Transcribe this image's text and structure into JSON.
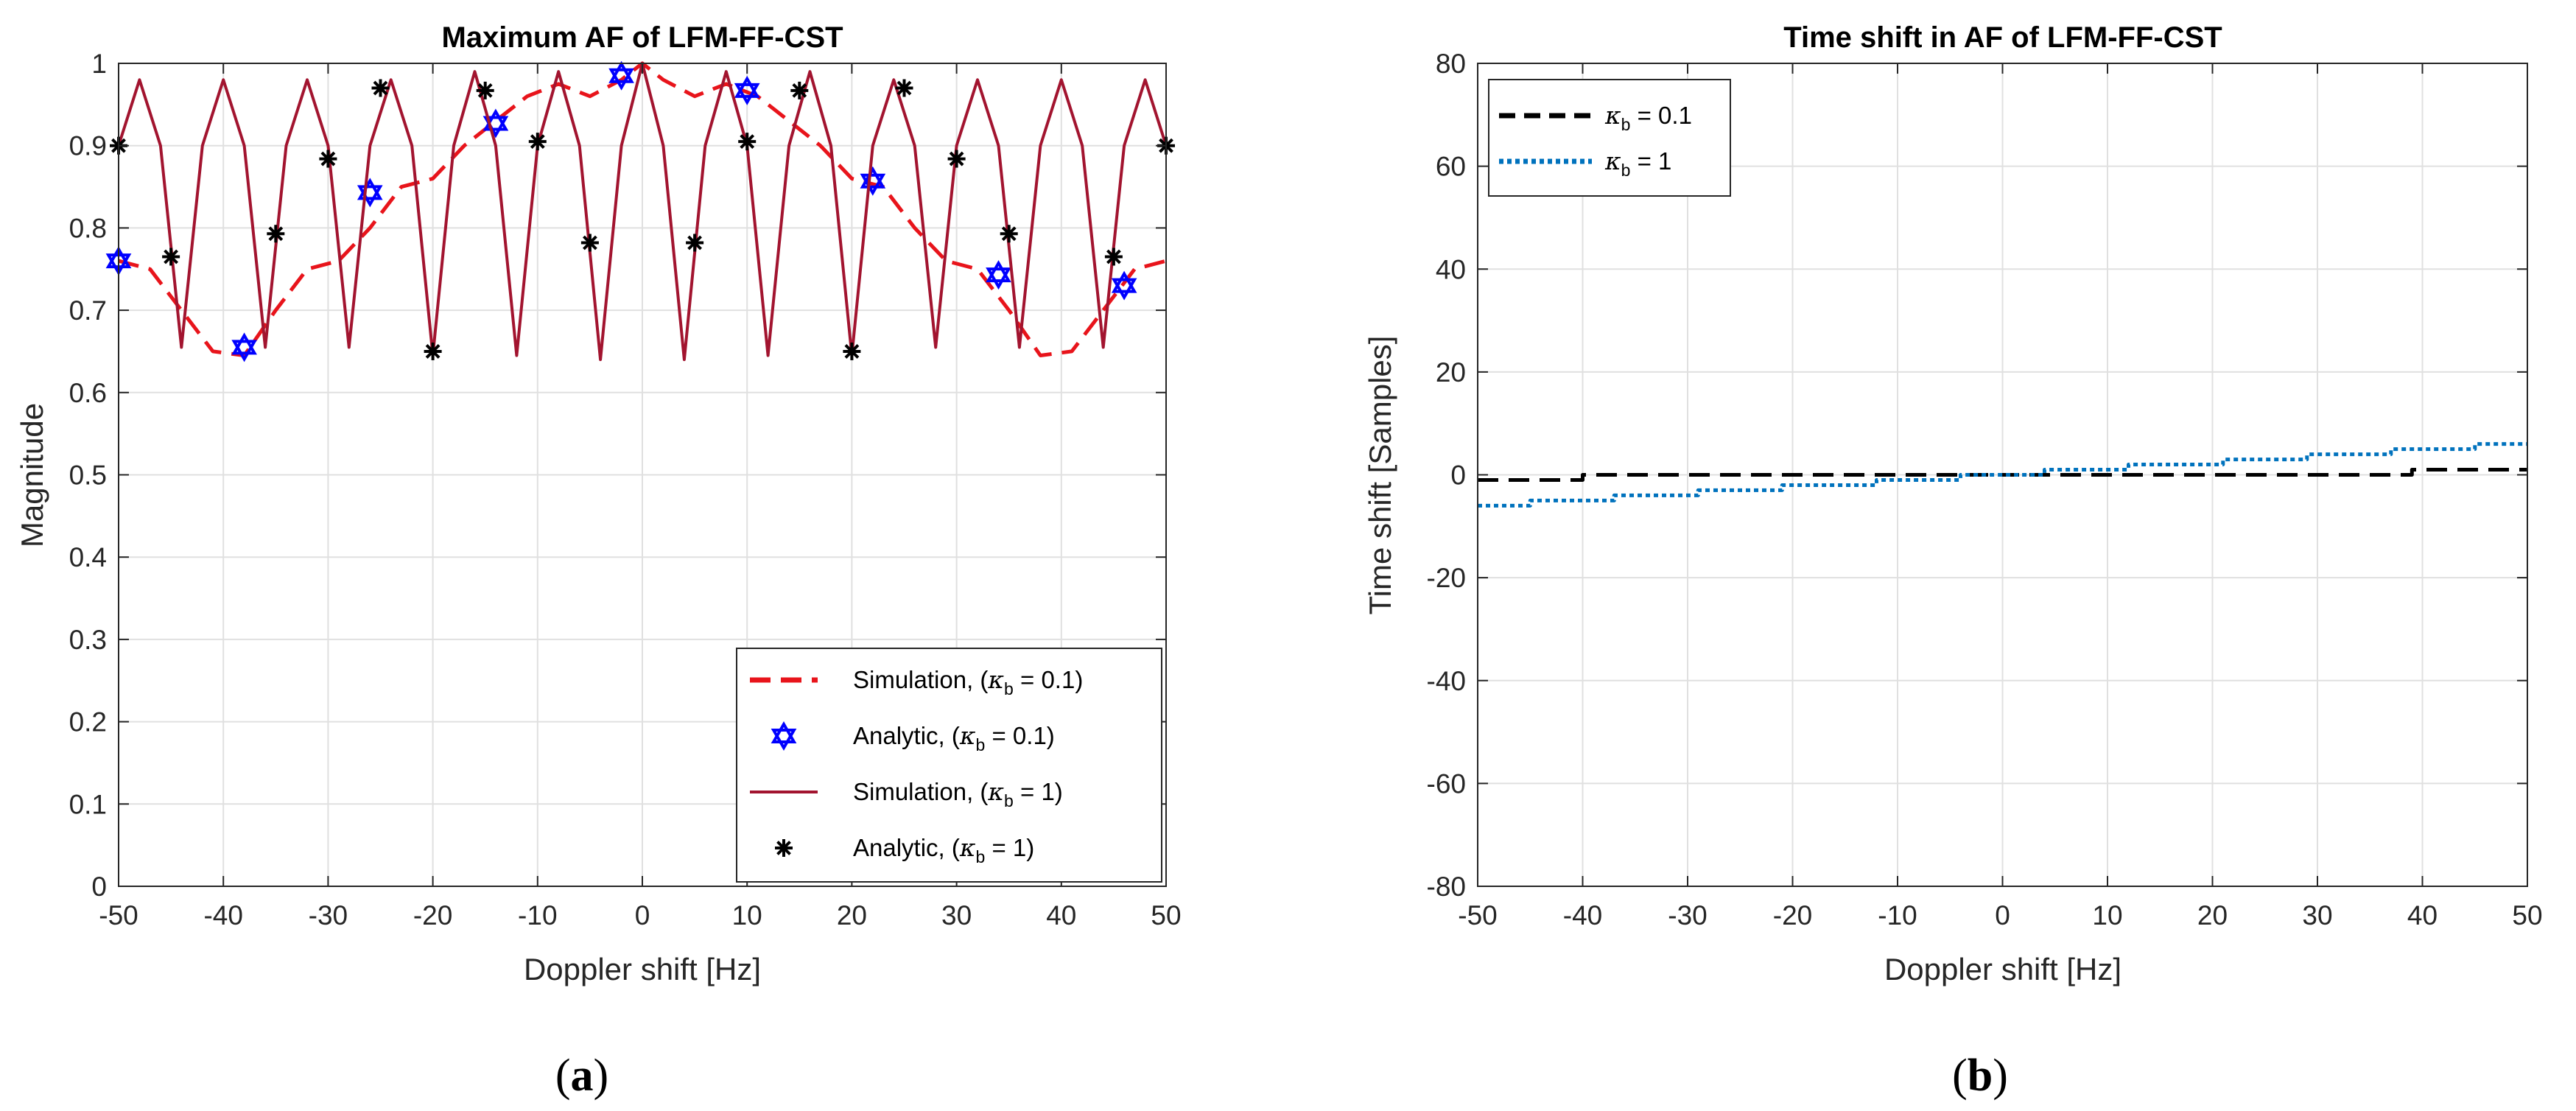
{
  "colors": {
    "red": "#e8141b",
    "blue": "#0000ff",
    "darkred": "#a2142f",
    "black": "#000000",
    "steel": "#0072bd",
    "grid": "#e0e0e0"
  },
  "chart_data": [
    {
      "type": "line",
      "panel": "a",
      "caption": "a",
      "title": "Maximum AF of LFM-FF-CST",
      "xlabel": "Doppler shift [Hz]",
      "ylabel": "Magnitude",
      "xlim": [
        -50,
        50
      ],
      "ylim": [
        0,
        1
      ],
      "xticks": [
        -50,
        -40,
        -30,
        -20,
        -10,
        0,
        10,
        20,
        30,
        40,
        50
      ],
      "xtick_labels": [
        "-50",
        "-40",
        "-30",
        "-20",
        "-10",
        "0",
        "10",
        "20",
        "30",
        "40",
        "50"
      ],
      "yticks": [
        0,
        0.1,
        0.2,
        0.3,
        0.4,
        0.5,
        0.6,
        0.7,
        0.8,
        0.9,
        1
      ],
      "ytick_labels": [
        "0",
        "0.1",
        "0.2",
        "0.3",
        "0.4",
        "0.5",
        "0.6",
        "0.7",
        "0.8",
        "0.9",
        "1"
      ],
      "grid": true,
      "legend_position": "bottom-right",
      "series": [
        {
          "name": "Simulation, (κb = 0.1)",
          "legend_pre": "Simulation,  (",
          "symbol": "κ",
          "sub": "b",
          "legend_post": " = 0.1)",
          "style": "dashed",
          "color": "#e8141b",
          "x": [
            -50,
            -47,
            -44,
            -41,
            -38,
            -35,
            -32,
            -29,
            -26,
            -23,
            -20,
            -17,
            -14,
            -11,
            -8,
            -5,
            -2,
            0,
            2,
            5,
            8,
            11,
            14,
            17,
            20,
            23,
            26,
            29,
            32,
            35,
            38,
            41,
            44,
            47,
            50
          ],
          "y": [
            0.76,
            0.75,
            0.7,
            0.65,
            0.645,
            0.7,
            0.75,
            0.76,
            0.8,
            0.85,
            0.86,
            0.9,
            0.93,
            0.96,
            0.975,
            0.96,
            0.98,
            1.0,
            0.98,
            0.96,
            0.975,
            0.96,
            0.93,
            0.9,
            0.86,
            0.85,
            0.8,
            0.76,
            0.75,
            0.7,
            0.645,
            0.65,
            0.7,
            0.75,
            0.76
          ]
        },
        {
          "name": "Analytic, (κb = 0.1)",
          "legend_pre": "Analytic,  (",
          "symbol": "κ",
          "sub": "b",
          "legend_post": " = 0.1)",
          "style": "hexagram",
          "color": "#0000ff",
          "x": [
            -50,
            -38,
            -26,
            -14,
            -2,
            10,
            22,
            34,
            46
          ],
          "y": [
            0.76,
            0.655,
            0.843,
            0.927,
            0.985,
            0.967,
            0.857,
            0.743,
            0.73
          ]
        },
        {
          "name": "Simulation, (κb = 1)",
          "legend_pre": "Simulation,  (",
          "symbol": "κ",
          "sub": "b",
          "legend_post": " = 1)",
          "style": "solid",
          "color": "#a2142f",
          "x": [
            -50,
            -48,
            -46,
            -44,
            -42,
            -40,
            -38,
            -36,
            -34,
            -32,
            -30,
            -28,
            -26,
            -24,
            -22,
            -20,
            -18,
            -16,
            -14,
            -12,
            -10,
            -8,
            -6,
            -4,
            -2,
            0,
            2,
            4,
            6,
            8,
            10,
            12,
            14,
            16,
            18,
            20,
            22,
            24,
            26,
            28,
            30,
            32,
            34,
            36,
            38,
            40,
            42,
            44,
            46,
            48,
            50
          ],
          "y": [
            0.9,
            0.98,
            0.9,
            0.655,
            0.9,
            0.98,
            0.9,
            0.655,
            0.9,
            0.98,
            0.9,
            0.655,
            0.9,
            0.98,
            0.9,
            0.645,
            0.9,
            0.99,
            0.9,
            0.645,
            0.9,
            0.99,
            0.9,
            0.64,
            0.9,
            1.0,
            0.9,
            0.64,
            0.9,
            0.99,
            0.9,
            0.645,
            0.9,
            0.99,
            0.9,
            0.645,
            0.9,
            0.98,
            0.9,
            0.655,
            0.9,
            0.98,
            0.9,
            0.655,
            0.9,
            0.98,
            0.9,
            0.655,
            0.9,
            0.98,
            0.9
          ]
        },
        {
          "name": "Analytic, (κb = 1)",
          "legend_pre": "Analytic,  (",
          "symbol": "κ",
          "sub": "b",
          "legend_post": " = 1)",
          "style": "asterisk",
          "color": "#000000",
          "x": [
            -50,
            -45,
            -35,
            -30,
            -25,
            -20,
            -15,
            -10,
            -5,
            5,
            10,
            15,
            20,
            25,
            30,
            35,
            45,
            50
          ],
          "y": [
            0.9,
            0.765,
            0.793,
            0.884,
            0.97,
            0.65,
            0.967,
            0.905,
            0.782,
            0.782,
            0.905,
            0.967,
            0.65,
            0.97,
            0.884,
            0.793,
            0.765,
            0.9
          ]
        }
      ]
    },
    {
      "type": "line",
      "panel": "b",
      "caption": "b",
      "title": "Time shift in AF of LFM-FF-CST",
      "xlabel": "Doppler shift [Hz]",
      "ylabel": "Time shift [Samples]",
      "xlim": [
        -50,
        50
      ],
      "ylim": [
        -80,
        80
      ],
      "xticks": [
        -50,
        -40,
        -30,
        -20,
        -10,
        0,
        10,
        20,
        30,
        40,
        50
      ],
      "xtick_labels": [
        "-50",
        "-40",
        "-30",
        "-20",
        "-10",
        "0",
        "10",
        "20",
        "30",
        "40",
        "50"
      ],
      "yticks": [
        -80,
        -60,
        -40,
        -20,
        0,
        20,
        40,
        60,
        80
      ],
      "ytick_labels": [
        "-80",
        "-60",
        "-40",
        "-20",
        "0",
        "20",
        "40",
        "60",
        "80"
      ],
      "grid": true,
      "legend_position": "top-left",
      "series": [
        {
          "name": "κb = 0.1",
          "legend_pre": "",
          "symbol": "κ",
          "sub": "b",
          "legend_post": " = 0.1",
          "style": "dashed",
          "color": "#000000",
          "x": [
            -50,
            -40,
            -40,
            39,
            39,
            50
          ],
          "y": [
            -1,
            -1,
            0,
            0,
            1,
            1
          ]
        },
        {
          "name": "κb = 1",
          "legend_pre": "",
          "symbol": "κ",
          "sub": "b",
          "legend_post": " = 1",
          "style": "dotted",
          "color": "#0072bd",
          "x": [
            -50,
            -45,
            -45,
            -37,
            -37,
            -29,
            -29,
            -21,
            -21,
            -12,
            -12,
            -4,
            -4,
            4,
            4,
            12,
            12,
            21,
            21,
            29,
            29,
            37,
            37,
            45,
            45,
            50
          ],
          "y": [
            -6,
            -6,
            -5,
            -5,
            -4,
            -4,
            -3,
            -3,
            -2,
            -2,
            -1,
            -1,
            0,
            0,
            1,
            1,
            2,
            2,
            3,
            3,
            4,
            4,
            5,
            5,
            6,
            6
          ]
        }
      ]
    }
  ]
}
